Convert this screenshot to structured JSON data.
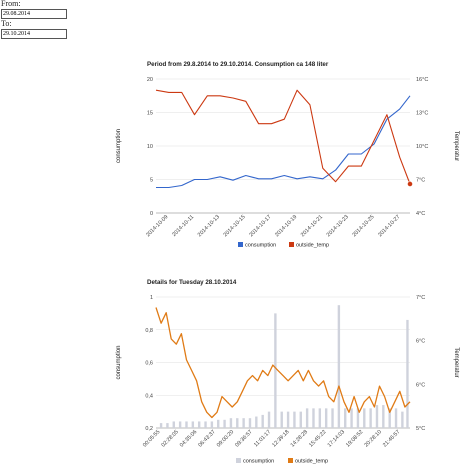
{
  "form": {
    "from_label": "From:",
    "from_value": "29.08.2014",
    "to_label": "To:",
    "to_value": "29.10.2014"
  },
  "colors": {
    "consumption": "#3366cc",
    "outside_temp": "#cc3912",
    "detail_temp": "#e07b16",
    "detail_bars": "#cfd2dc",
    "grid": "#e0e0e0"
  },
  "chart_data": [
    {
      "type": "line",
      "title": "Period from 29.8.2014 to 29.10.2014. Consumption ca 148 liter",
      "ylabel": "consumption",
      "y2label": "Temperatur",
      "left_ticks": [
        "20",
        "15",
        "10",
        "5",
        "0"
      ],
      "right_ticks": [
        "16°C",
        "13°C",
        "10°C",
        "7°C",
        "4°C"
      ],
      "x_ticks": [
        "2014-10-09",
        "2014-10-11",
        "2014-10-13",
        "2014-10-15",
        "2014-10-17",
        "2014-10-19",
        "2014-10-21",
        "2014-10-23",
        "2014-10-25",
        "2014-10-27"
      ],
      "ylim": [
        0,
        20
      ],
      "y2lim": [
        4,
        16
      ],
      "xlim": [
        0,
        19.8
      ],
      "legend": "bottom",
      "series": [
        {
          "name": "consumption",
          "axis": "left",
          "x": [
            0,
            1,
            2,
            3,
            4,
            5,
            6,
            7,
            8,
            9,
            10,
            11,
            12,
            13,
            14,
            15,
            16,
            17,
            18,
            19,
            19.8
          ],
          "values": [
            3.8,
            3.8,
            4.1,
            5,
            5,
            5.4,
            4.9,
            5.6,
            5.1,
            5.1,
            5.6,
            5.1,
            5.4,
            5.1,
            6.4,
            8.8,
            8.8,
            10.3,
            14,
            15.5,
            17.5
          ]
        },
        {
          "name": "outside_temp",
          "axis": "right",
          "x": [
            0,
            1,
            2,
            3,
            4,
            5,
            6,
            7,
            8,
            9,
            10,
            11,
            12,
            13,
            14,
            15,
            16,
            17,
            18,
            19,
            19.8
          ],
          "values": [
            15,
            14.8,
            14.8,
            12.8,
            14.5,
            14.5,
            14.3,
            14,
            12,
            12,
            12.4,
            15,
            13.7,
            8,
            6.8,
            8.2,
            8.2,
            10.5,
            12.8,
            9,
            6.6
          ]
        }
      ]
    },
    {
      "type": "line",
      "title": "Details for Tuesday 28.10.2014",
      "ylabel": "consumption",
      "y2label": "Temperatur",
      "left_ticks": [
        "1",
        "0,8",
        "0,6",
        "0,4",
        "0,2"
      ],
      "right_ticks": [
        "7°C",
        "6°C",
        "6°C",
        "5°C"
      ],
      "x_ticks": [
        "00:05:55",
        "02:28:05",
        "04:35:06",
        "06:43:37",
        "09:00:20",
        "09:36:57",
        "11:01:17",
        "12:39:18",
        "14:28:28",
        "15:45:22",
        "17:14:03",
        "19:08:52",
        "20:28:10",
        "21:46:57"
      ],
      "ylim": [
        0.2,
        1
      ],
      "y2lim": [
        5.5,
        8
      ],
      "xlim": [
        0,
        100
      ],
      "legend": "bottom",
      "series": [
        {
          "name": "consumption",
          "axis": "left",
          "type": "bar",
          "x": [
            2,
            4.5,
            7,
            9.5,
            12,
            14.5,
            17,
            19.5,
            22,
            24.5,
            27,
            29.5,
            32,
            34.5,
            37,
            39.5,
            42,
            44.5,
            47,
            49.5,
            52,
            54.5,
            57,
            59.5,
            62,
            64.5,
            67,
            69.5,
            72,
            74.5,
            77,
            79.5,
            82,
            84.5,
            87,
            89.5,
            92,
            94.5,
            97,
            99
          ],
          "values": [
            0.23,
            0.23,
            0.24,
            0.24,
            0.24,
            0.24,
            0.24,
            0.24,
            0.24,
            0.25,
            0.25,
            0.26,
            0.26,
            0.26,
            0.26,
            0.27,
            0.28,
            0.3,
            0.9,
            0.3,
            0.3,
            0.3,
            0.3,
            0.32,
            0.32,
            0.32,
            0.32,
            0.32,
            0.95,
            0.32,
            0.32,
            0.32,
            0.32,
            0.32,
            0.34,
            0.34,
            0.32,
            0.32,
            0.3,
            0.86
          ]
        },
        {
          "name": "outside_temp",
          "axis": "right",
          "x": [
            0,
            2,
            4,
            6,
            8,
            10,
            12,
            14,
            16,
            18,
            20,
            22,
            24,
            26,
            28,
            30,
            32,
            34,
            36,
            38,
            40,
            42,
            44,
            46,
            48,
            50,
            52,
            54,
            56,
            58,
            60,
            62,
            64,
            66,
            68,
            70,
            72,
            74,
            76,
            78,
            80,
            82,
            84,
            86,
            88,
            90,
            92,
            94,
            96,
            98,
            100
          ],
          "values": [
            7.8,
            7.5,
            7.7,
            7.2,
            7.1,
            7.3,
            6.8,
            6.6,
            6.4,
            6.0,
            5.8,
            5.7,
            5.8,
            6.1,
            6.0,
            5.9,
            6.0,
            6.2,
            6.4,
            6.5,
            6.4,
            6.6,
            6.5,
            6.7,
            6.6,
            6.5,
            6.4,
            6.5,
            6.6,
            6.4,
            6.6,
            6.4,
            6.3,
            6.4,
            6.1,
            6.0,
            6.3,
            6.0,
            5.8,
            6.1,
            5.8,
            6.0,
            6.1,
            5.9,
            6.3,
            6.1,
            5.8,
            6.0,
            6.2,
            5.9,
            6.0
          ]
        }
      ]
    }
  ]
}
